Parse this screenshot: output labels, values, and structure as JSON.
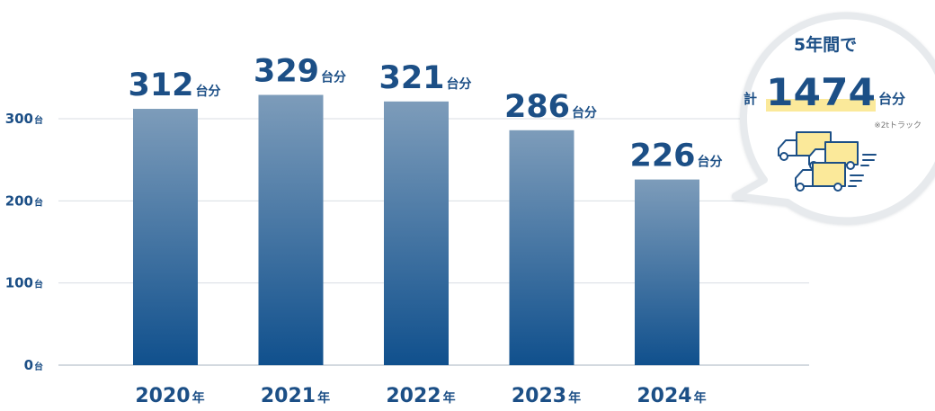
{
  "chart_data": {
    "type": "bar",
    "categories": [
      "2020",
      "2021",
      "2022",
      "2023",
      "2024"
    ],
    "category_unit": "年",
    "values": [
      312,
      329,
      321,
      286,
      226
    ],
    "value_labels": [
      "312",
      "329",
      "321",
      "286",
      "226"
    ],
    "value_unit": "台分",
    "yticks": [
      {
        "value": 0,
        "label": "0"
      },
      {
        "value": 100,
        "label": "100"
      },
      {
        "value": 200,
        "label": "200"
      },
      {
        "value": 300,
        "label": "300"
      }
    ],
    "ytick_unit": "台",
    "ylim": [
      0,
      300
    ],
    "grid": true,
    "colors": {
      "bar_top": "#7d9cba",
      "bar_bottom": "#10508d",
      "text": "#1c4f86",
      "highlight": "#fbe99a",
      "bubble_border": "#e7eaed"
    }
  },
  "callout": {
    "lead": "5年間で",
    "prefix": "計",
    "total": "1474",
    "unit": "台分",
    "note": "※2tトラック",
    "icon": "trucks-icon"
  }
}
